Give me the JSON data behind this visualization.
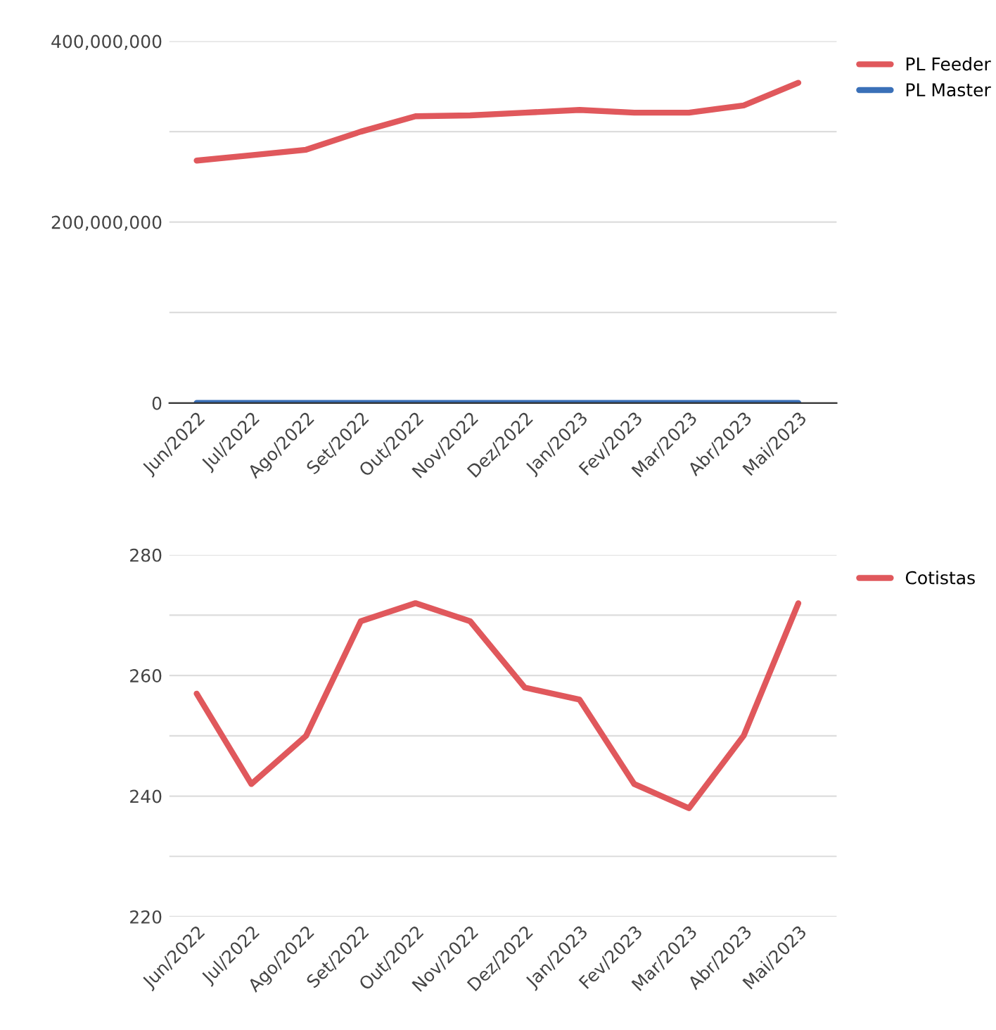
{
  "chart_data": [
    {
      "type": "line",
      "categories": [
        "Jun/2022",
        "Jul/2022",
        "Ago/2022",
        "Set/2022",
        "Out/2022",
        "Nov/2022",
        "Dez/2022",
        "Jan/2023",
        "Fev/2023",
        "Mar/2023",
        "Abr/2023",
        "Mai/2023"
      ],
      "series": [
        {
          "name": "PL Feeder",
          "color": "#e0585c",
          "values": [
            268000000,
            274000000,
            280000000,
            300000000,
            317000000,
            318000000,
            321000000,
            324000000,
            321000000,
            321000000,
            329000000,
            354000000
          ]
        },
        {
          "name": "PL Master",
          "color": "#3a70b8",
          "values": [
            0,
            0,
            0,
            0,
            0,
            0,
            0,
            0,
            0,
            0,
            0,
            0
          ]
        }
      ],
      "ylim": [
        0,
        400000000
      ],
      "yticks": [
        {
          "value": 0,
          "label": "0"
        },
        {
          "value": 100000000,
          "label": null
        },
        {
          "value": 200000000,
          "label": "200,000,000"
        },
        {
          "value": 300000000,
          "label": null
        },
        {
          "value": 400000000,
          "label": "400,000,000"
        }
      ],
      "grid": "y",
      "legend": "top right",
      "marker": "none",
      "line_style": "solid"
    },
    {
      "type": "line",
      "categories": [
        "Jun/2022",
        "Jul/2022",
        "Ago/2022",
        "Set/2022",
        "Out/2022",
        "Nov/2022",
        "Dez/2022",
        "Jan/2023",
        "Fev/2023",
        "Mar/2023",
        "Abr/2023",
        "Mai/2023"
      ],
      "series": [
        {
          "name": "Cotistas",
          "color": "#e0585c",
          "values": [
            257,
            242,
            250,
            269,
            272,
            269,
            258,
            256,
            242,
            238,
            250,
            272
          ]
        }
      ],
      "ylim": [
        220,
        280
      ],
      "yticks": [
        220,
        {
          "value": 230,
          "label": null
        },
        240,
        {
          "value": 250,
          "label": null
        },
        260,
        {
          "value": 270,
          "label": null
        },
        280
      ],
      "grid": "y",
      "legend": "top right",
      "marker": "none",
      "line_style": "solid"
    }
  ]
}
